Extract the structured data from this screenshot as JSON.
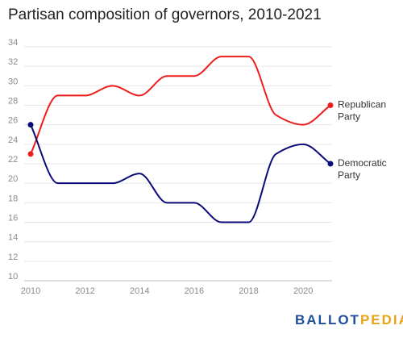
{
  "chart_data": {
    "type": "line",
    "title": "Partisan composition of governors, 2010-2021",
    "xlabel": "",
    "ylabel": "",
    "x": [
      2010,
      2011,
      2012,
      2013,
      2014,
      2015,
      2016,
      2017,
      2018,
      2019,
      2020,
      2021
    ],
    "xticks": [
      "2010",
      "2012",
      "2014",
      "2016",
      "2018",
      "2020"
    ],
    "yticks": [
      "10",
      "12",
      "14",
      "16",
      "18",
      "20",
      "22",
      "24",
      "26",
      "28",
      "30",
      "32",
      "34"
    ],
    "xlim": [
      2010,
      2021
    ],
    "ylim": [
      10,
      34
    ],
    "grid": true,
    "legend": "end-of-line labels",
    "series": [
      {
        "name": "Republican Party",
        "label_lines": [
          "Republican",
          "Party"
        ],
        "color": "#ee1c1c",
        "values": [
          23,
          29,
          29,
          30,
          29,
          31,
          31,
          33,
          33,
          27,
          26,
          28
        ]
      },
      {
        "name": "Democratic Party",
        "label_lines": [
          "Democratic",
          "Party"
        ],
        "color": "#0a0a7a",
        "values": [
          26,
          20,
          20,
          20,
          21,
          18,
          18,
          16,
          16,
          23,
          24,
          22
        ]
      }
    ]
  },
  "logo": {
    "part1": "BALLOT",
    "part2": "PEDIA",
    "color1": "#1f4e9a",
    "color2": "#e8a317"
  }
}
